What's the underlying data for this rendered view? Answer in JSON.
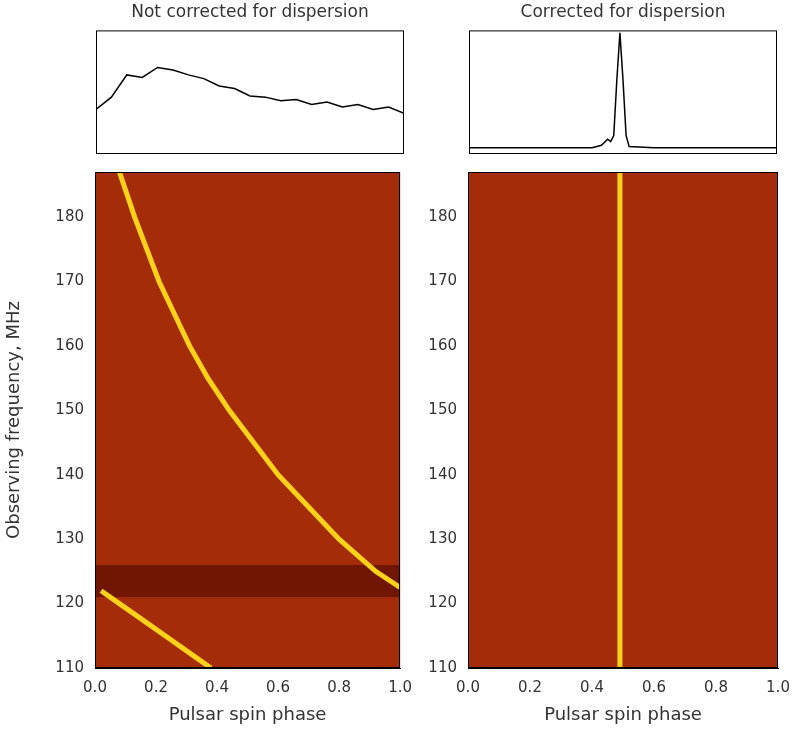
{
  "chart_data": [
    {
      "type": "line",
      "title": "Not corrected for dispersion",
      "tick_labels": false,
      "grid": false,
      "xlim": [
        0,
        1
      ],
      "ylim": [
        0,
        1
      ],
      "series": [
        {
          "color": "#000000",
          "marker": "none",
          "line_style": "solid",
          "x": [
            0,
            0.05,
            0.1,
            0.15,
            0.2,
            0.25,
            0.3,
            0.35,
            0.4,
            0.45,
            0.5,
            0.55,
            0.6,
            0.65,
            0.7,
            0.75,
            0.8,
            0.85,
            0.9,
            0.95,
            1
          ],
          "values": [
            0.36,
            0.46,
            0.64,
            0.62,
            0.7,
            0.68,
            0.64,
            0.61,
            0.55,
            0.53,
            0.47,
            0.46,
            0.43,
            0.44,
            0.4,
            0.42,
            0.38,
            0.4,
            0.36,
            0.38,
            0.33
          ]
        }
      ]
    },
    {
      "type": "line",
      "xlabel": "Pulsar spin phase",
      "ylabel": "Observing frequency, MHz",
      "grid": false,
      "xlim": [
        0,
        1
      ],
      "ylim": [
        110,
        187
      ],
      "xticks": [
        {
          "value": 0,
          "label": "0.0"
        },
        0.2,
        0.4,
        0.6,
        0.8,
        {
          "value": 1,
          "label": "1.0"
        }
      ],
      "yticks": [
        110,
        120,
        130,
        140,
        150,
        160,
        170,
        180
      ],
      "masked_band": [
        121,
        126
      ],
      "series": [
        {
          "color": "#ffd21a",
          "marker": "none",
          "line_style": "solid",
          "x": [
            0.08,
            0.13,
            0.17,
            0.21,
            0.26,
            0.31,
            0.37,
            0.44,
            0.52,
            0.6,
            0.7,
            0.8,
            0.92,
            1.0
          ],
          "values": [
            187,
            180,
            175,
            170,
            165,
            160,
            155,
            150,
            145,
            140,
            135,
            130,
            125,
            122.5
          ]
        },
        {
          "color": "#ffd21a",
          "marker": "none",
          "line_style": "solid",
          "x": [
            0.02,
            0.08,
            0.17,
            0.23,
            0.32,
            0.38
          ],
          "values": [
            122,
            120,
            117,
            115,
            112,
            110
          ]
        }
      ]
    },
    {
      "type": "line",
      "title": "Corrected for dispersion",
      "tick_labels": false,
      "grid": false,
      "xlim": [
        0,
        1
      ],
      "ylim": [
        0,
        1
      ],
      "series": [
        {
          "color": "#000000",
          "marker": "none",
          "line_style": "solid",
          "x": [
            0,
            0.1,
            0.2,
            0.3,
            0.4,
            0.43,
            0.45,
            0.46,
            0.47,
            0.48,
            0.49,
            0.5,
            0.51,
            0.52,
            0.6,
            0.7,
            0.8,
            0.9,
            1
          ],
          "values": [
            0.05,
            0.05,
            0.05,
            0.05,
            0.05,
            0.07,
            0.12,
            0.1,
            0.15,
            0.6,
            0.98,
            0.6,
            0.15,
            0.06,
            0.05,
            0.05,
            0.05,
            0.05,
            0.05
          ]
        }
      ]
    },
    {
      "type": "line",
      "xlabel": "Pulsar spin phase",
      "grid": false,
      "xlim": [
        0,
        1
      ],
      "ylim": [
        110,
        187
      ],
      "xticks": [
        {
          "value": 0,
          "label": "0.0"
        },
        0.2,
        0.4,
        0.6,
        0.8,
        {
          "value": 1,
          "label": "1.0"
        }
      ],
      "yticks": [
        110,
        120,
        130,
        140,
        150,
        160,
        170,
        180
      ],
      "series": [
        {
          "color": "#ffd21a",
          "marker": "none",
          "line_style": "solid",
          "x": [
            0.49,
            0.49
          ],
          "values": [
            110,
            187
          ]
        }
      ]
    }
  ]
}
